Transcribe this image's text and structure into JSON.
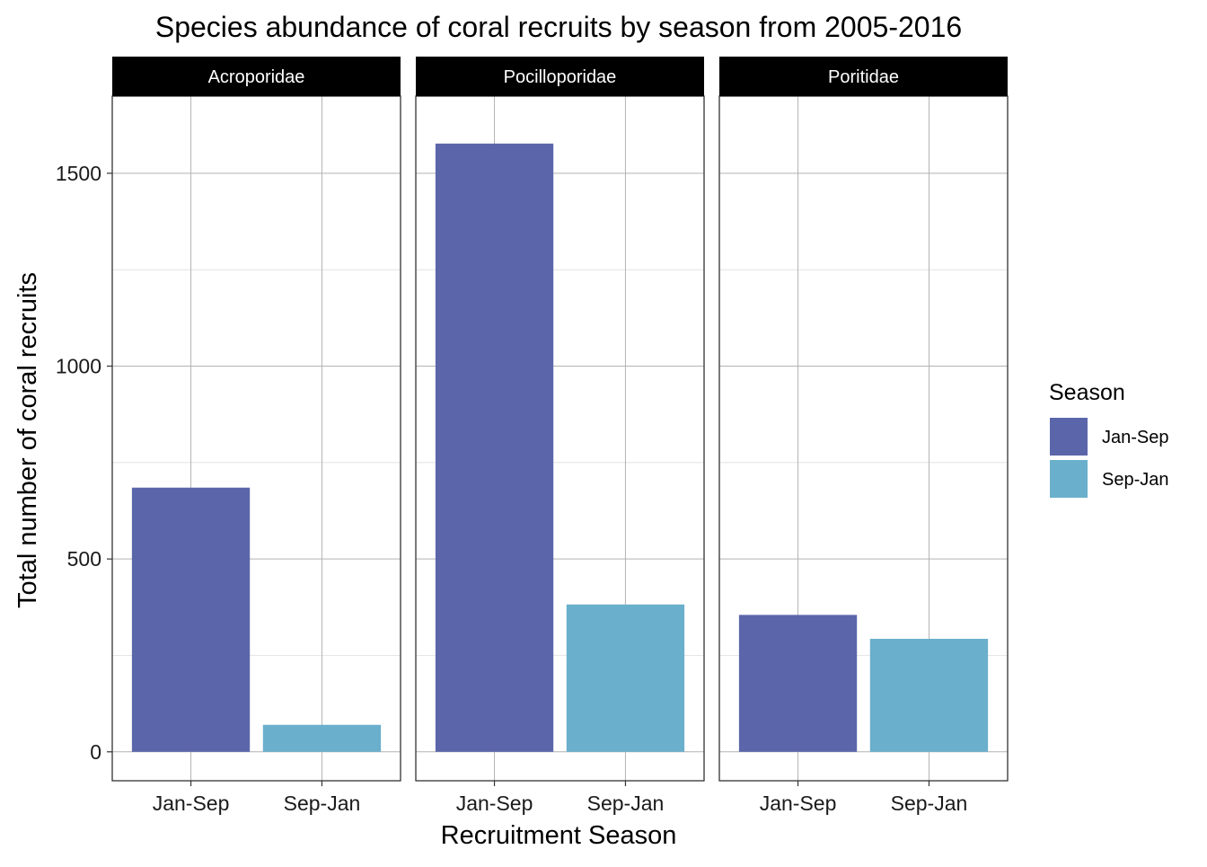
{
  "chart_data": {
    "type": "bar",
    "title": "Species abundance of coral recruits by season from 2005-2016",
    "xlabel": "Recruitment Season",
    "ylabel": "Total number of coral recruits",
    "categories": [
      "Jan-Sep",
      "Sep-Jan"
    ],
    "ylim": [
      -75,
      1700
    ],
    "yticks": [
      0,
      500,
      1000,
      1500
    ],
    "panels": [
      {
        "name": "Acroporidae",
        "values": [
          685,
          70
        ]
      },
      {
        "name": "Pocilloporidae",
        "values": [
          1577,
          382
        ]
      },
      {
        "name": "Poritidae",
        "values": [
          355,
          293
        ]
      }
    ],
    "legend": {
      "title": "Season",
      "position": "right",
      "items": [
        {
          "label": "Jan-Sep",
          "color": "#5B66AA"
        },
        {
          "label": "Sep-Jan",
          "color": "#6AAFCC"
        }
      ]
    },
    "grid": true
  }
}
